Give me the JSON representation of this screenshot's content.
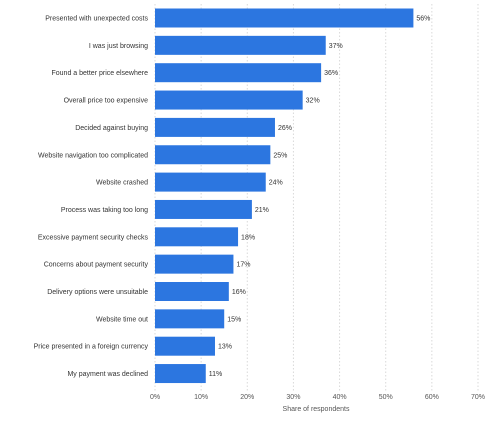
{
  "chart_data": {
    "type": "bar",
    "orientation": "horizontal",
    "categories": [
      "Presented with unexpected costs",
      "I was just browsing",
      "Found a better price elsewhere",
      "Overall price too expensive",
      "Decided against buying",
      "Website navigation too complicated",
      "Website crashed",
      "Process was taking too long",
      "Excessive payment security checks",
      "Concerns about payment security",
      "Delivery options were unsuitable",
      "Website time out",
      "Price presented in a foreign currency",
      "My payment was declined"
    ],
    "values": [
      56,
      37,
      36,
      32,
      26,
      25,
      24,
      21,
      18,
      17,
      16,
      15,
      13,
      11
    ],
    "value_labels": [
      "56%",
      "37%",
      "36%",
      "32%",
      "26%",
      "25%",
      "24%",
      "21%",
      "18%",
      "17%",
      "16%",
      "15%",
      "13%",
      "11%"
    ],
    "xlabel": "Share of respondents",
    "xlim": [
      0,
      70
    ],
    "x_ticks": [
      0,
      10,
      20,
      30,
      40,
      50,
      60,
      70
    ],
    "x_tick_labels": [
      "0%",
      "10%",
      "20%",
      "30%",
      "40%",
      "50%",
      "60%",
      "70%"
    ],
    "grid": true,
    "bar_color": "#2c76e0"
  }
}
